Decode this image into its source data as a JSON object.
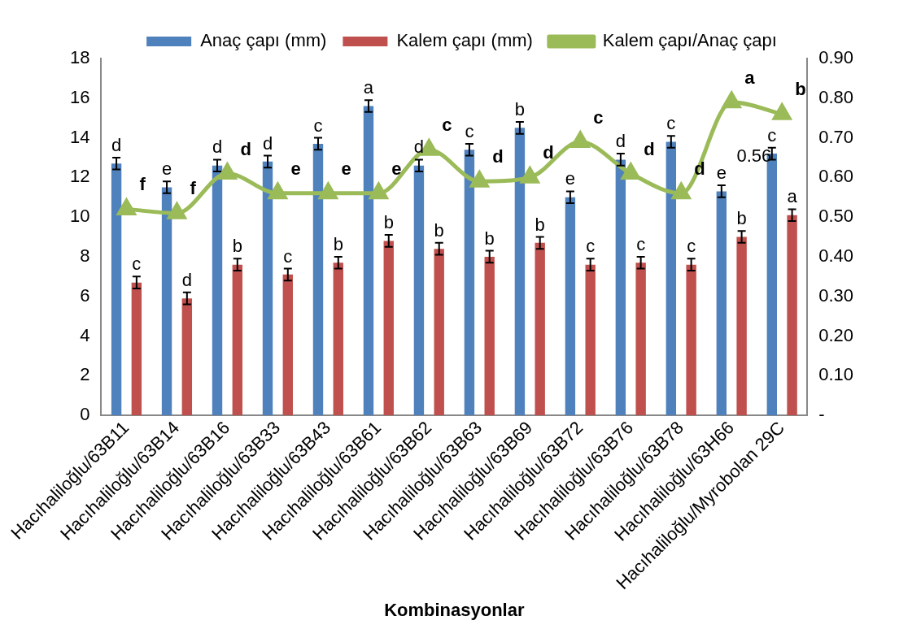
{
  "chart_data": {
    "type": "bar",
    "xlabel": "Kombinasyonlar",
    "categories": [
      "Hacıhaliloğlu/63B11",
      "Hacıhaliloğlu/63B14",
      "Hacıhaliloğlu/63B16",
      "Hacıhaliloğlu/63B33",
      "Hacıhaliloğlu/63B43",
      "Hacıhaliloğlu/63B61",
      "Hacıhaliloğlu/63B62",
      "Hacıhaliloğlu/63B63",
      "Hacıhaliloğlu/63B69",
      "Hacıhaliloğlu/63B72",
      "Hacıhaliloğlu/63B76",
      "Hacıhaliloğlu/63B78",
      "Hacıhaliloğlu/63H66",
      "Hacıhaliloğlu/Myrobolan 29C"
    ],
    "series": [
      {
        "name": "Anaç çapı (mm)",
        "color": "#4f81bd",
        "values": [
          12.7,
          11.5,
          12.6,
          12.8,
          13.7,
          15.6,
          12.6,
          13.4,
          14.5,
          11.0,
          12.9,
          13.8,
          11.3,
          13.2
        ],
        "errors": [
          0.3,
          0.3,
          0.3,
          0.3,
          0.3,
          0.3,
          0.3,
          0.3,
          0.3,
          0.3,
          0.3,
          0.3,
          0.3,
          0.3
        ],
        "value_labels": [
          "d",
          "e",
          "d",
          "d",
          "c",
          "a",
          "d",
          "c",
          "b",
          "e",
          "d",
          "c",
          "e",
          "c"
        ]
      },
      {
        "name": "Kalem çapı (mm)",
        "color": "#c0504d",
        "values": [
          6.7,
          5.9,
          7.6,
          7.1,
          7.7,
          8.8,
          8.4,
          8.0,
          8.7,
          7.6,
          7.7,
          7.6,
          9.0,
          10.1
        ],
        "errors": [
          0.3,
          0.3,
          0.3,
          0.3,
          0.3,
          0.3,
          0.3,
          0.3,
          0.3,
          0.3,
          0.3,
          0.3,
          0.3,
          0.3
        ],
        "value_labels": [
          "c",
          "d",
          "b",
          "c",
          "b",
          "b",
          "b",
          "b",
          "b",
          "c",
          "c",
          "c",
          "b",
          "a"
        ]
      },
      {
        "name": "Kalem çapı/Anaç çapı",
        "type": "line",
        "axis": "y2",
        "color": "#9bbb59",
        "values": [
          0.52,
          0.51,
          0.61,
          0.56,
          0.56,
          0.56,
          0.67,
          0.59,
          0.6,
          0.69,
          0.61,
          0.56,
          0.79,
          0.76
        ],
        "value_labels": [
          "f",
          "f",
          "d",
          "e",
          "e",
          "e",
          "c",
          "d",
          "d",
          "c",
          "d",
          "d",
          "a",
          "b"
        ]
      }
    ],
    "annotations": [
      "0.56"
    ],
    "ylim": [
      0,
      18
    ],
    "yticks": [
      0,
      2,
      4,
      6,
      8,
      10,
      12,
      14,
      16,
      18
    ],
    "y2lim": [
      0,
      0.9
    ],
    "y2ticks": [
      {
        "value": 0,
        "label": "-"
      },
      {
        "value": 0.1,
        "label": "0.10"
      },
      {
        "value": 0.2,
        "label": "0.20"
      },
      {
        "value": 0.3,
        "label": "0.30"
      },
      {
        "value": 0.4,
        "label": "0.40"
      },
      {
        "value": 0.5,
        "label": "0.50"
      },
      {
        "value": 0.6,
        "label": "0.60"
      },
      {
        "value": 0.7,
        "label": "0.70"
      },
      {
        "value": 0.8,
        "label": "0.80"
      },
      {
        "value": 0.9,
        "label": "0.90"
      }
    ],
    "marker": "triangle",
    "legend": "top",
    "grid": false
  }
}
